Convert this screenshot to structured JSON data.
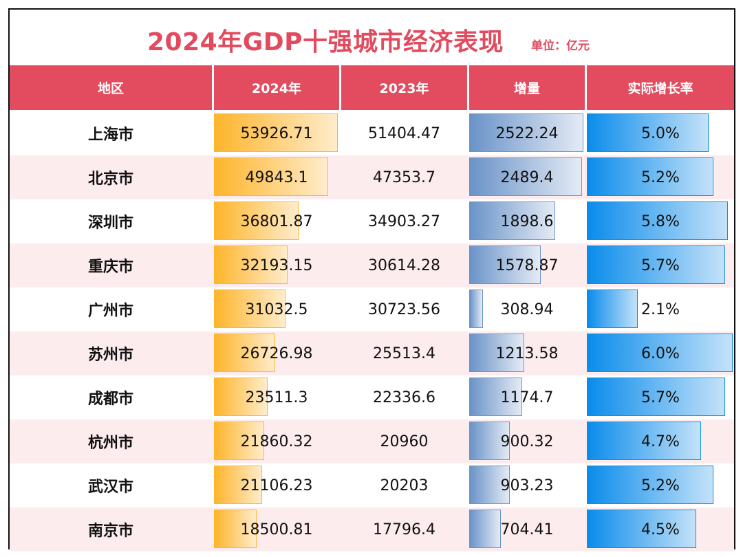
{
  "title": "2024年GDP十强城市经济表现",
  "unit": "单位：亿元",
  "colors": {
    "accent": "#e34a5e",
    "gdp_bar": "#fdb52b",
    "increment_bar": "#6a93c8",
    "rate_bar": "#0a8ceb",
    "alt_row": "#fcecee"
  },
  "chart_data": {
    "type": "table",
    "title": "2024年GDP十强城市经济表现",
    "columns": [
      "地区",
      "2024年",
      "2023年",
      "增量",
      "实际增长率"
    ],
    "rows": [
      {
        "city": "上海市",
        "y2024": "53926.71",
        "y2023": "51404.47",
        "inc": "2522.24",
        "rate": "5.0%"
      },
      {
        "city": "北京市",
        "y2024": "49843.1",
        "y2023": "47353.7",
        "inc": "2489.4",
        "rate": "5.2%"
      },
      {
        "city": "深圳市",
        "y2024": "36801.87",
        "y2023": "34903.27",
        "inc": "1898.6",
        "rate": "5.8%"
      },
      {
        "city": "重庆市",
        "y2024": "32193.15",
        "y2023": "30614.28",
        "inc": "1578.87",
        "rate": "5.7%"
      },
      {
        "city": "广州市",
        "y2024": "31032.5",
        "y2023": "30723.56",
        "inc": "308.94",
        "rate": "2.1%"
      },
      {
        "city": "苏州市",
        "y2024": "26726.98",
        "y2023": "25513.4",
        "inc": "1213.58",
        "rate": "6.0%"
      },
      {
        "city": "成都市",
        "y2024": "23511.3",
        "y2023": "22336.6",
        "inc": "1174.7",
        "rate": "5.7%"
      },
      {
        "city": "杭州市",
        "y2024": "21860.32",
        "y2023": "20960",
        "inc": "900.32",
        "rate": "4.7%"
      },
      {
        "city": "武汉市",
        "y2024": "21106.23",
        "y2023": "20203",
        "inc": "903.23",
        "rate": "5.2%"
      },
      {
        "city": "南京市",
        "y2024": "18500.81",
        "y2023": "17796.4",
        "inc": "704.41",
        "rate": "4.5%"
      }
    ]
  }
}
